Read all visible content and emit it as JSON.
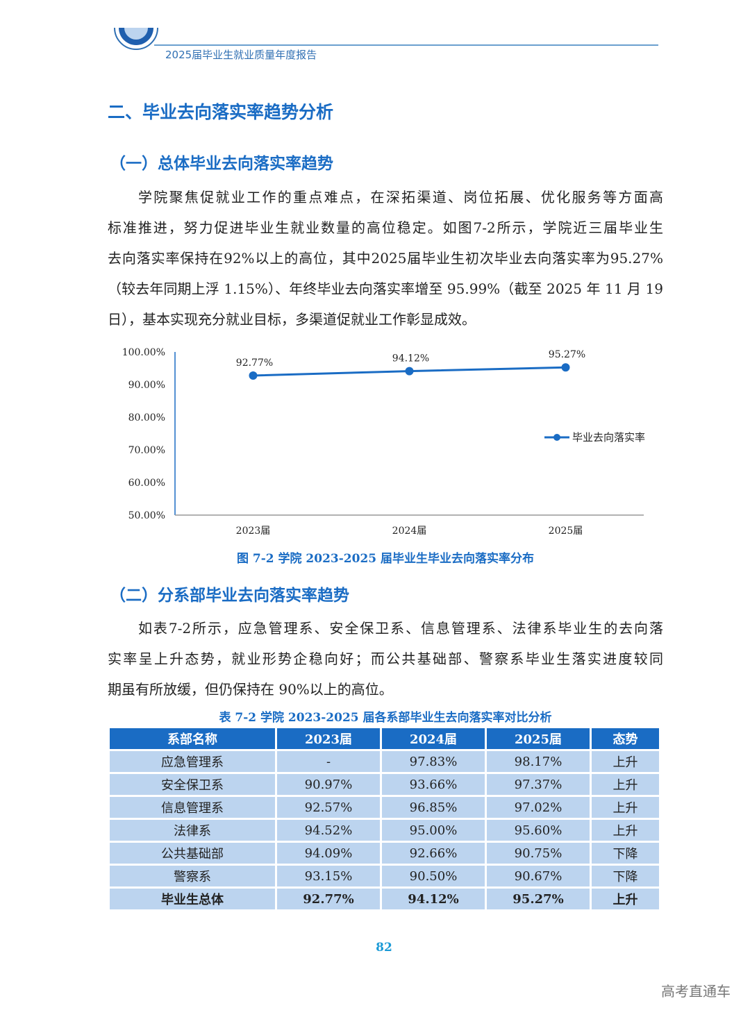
{
  "header": {
    "title": "2025届毕业生就业质量年度报告"
  },
  "section_title": "二、毕业去向落实率趋势分析",
  "sub1": {
    "title": "（一）总体毕业去向落实率趋势",
    "lines": [
      "学院聚焦促就业工作的重点难点，在深拓渠道、岗位拓展、优化服务等方面高",
      "标准推进，努力促进毕业生就业数量的高位稳定。如图7-2所示，学院近三届毕业生",
      "去向落实率保持在92%以上的高位，其中2025届毕业生初次毕业去向落实率为95.27%",
      "（较去年同期上浮 1.15%）、年终毕业去向落实率增至 95.99%（截至 2025 年 11 月 19",
      "日），基本实现充分就业目标，多渠道促就业工作彰显成效。"
    ]
  },
  "chart_data": {
    "type": "line",
    "categories": [
      "2023届",
      "2024届",
      "2025届"
    ],
    "series": [
      {
        "name": "毕业去向落实率",
        "values": [
          92.77,
          94.12,
          95.27
        ],
        "labels": [
          "92.77%",
          "94.12%",
          "95.27%"
        ],
        "color": "#1a6cc4"
      }
    ],
    "y_ticks": [
      "50.00%",
      "60.00%",
      "70.00%",
      "80.00%",
      "90.00%",
      "100.00%"
    ],
    "ylim": [
      50,
      100
    ],
    "grid": false,
    "legend": "right",
    "title": "图 7-2  学院 2023-2025 届毕业生毕业去向落实率分布"
  },
  "sub2": {
    "title": "（二）分系部毕业去向落实率趋势",
    "lines": [
      "如表7-2所示，应急管理系、安全保卫系、信息管理系、法律系毕业生的去向落",
      "实率呈上升态势，就业形势企稳向好；而公共基础部、警察系毕业生落实进度较同",
      "期虽有所放缓，但仍保持在 90%以上的高位。"
    ]
  },
  "table": {
    "caption": "表 7-2  学院 2023-2025 届各系部毕业生去向落实率对比分析",
    "headers": [
      "系部名称",
      "2023届",
      "2024届",
      "2025届",
      "态势"
    ],
    "rows": [
      [
        "应急管理系",
        "-",
        "97.83%",
        "98.17%",
        "上升"
      ],
      [
        "安全保卫系",
        "90.97%",
        "93.66%",
        "97.37%",
        "上升"
      ],
      [
        "信息管理系",
        "92.57%",
        "96.85%",
        "97.02%",
        "上升"
      ],
      [
        "法律系",
        "94.52%",
        "95.00%",
        "95.60%",
        "上升"
      ],
      [
        "公共基础部",
        "94.09%",
        "92.66%",
        "90.75%",
        "下降"
      ],
      [
        "警察系",
        "93.15%",
        "90.50%",
        "90.67%",
        "下降"
      ],
      [
        "毕业生总体",
        "92.77%",
        "94.12%",
        "95.27%",
        "上升"
      ]
    ]
  },
  "page_number": "82",
  "watermark": "高考直通车"
}
